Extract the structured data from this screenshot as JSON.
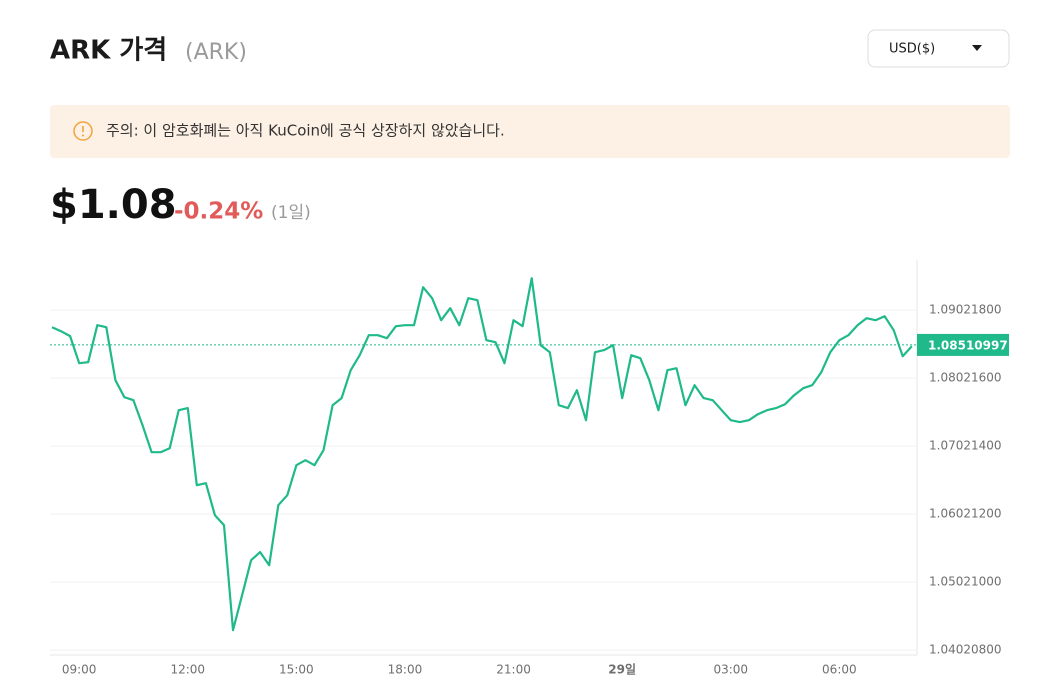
{
  "header": {
    "title": "ARK 가격",
    "symbol": "(ARK)",
    "currency_button": "USD($)"
  },
  "notice": {
    "text": "주의: 이 암호화폐는 아직 KuCoin에 공식 상장하지 않았습니다."
  },
  "price": {
    "value": "$1.08",
    "change": "-0.24%",
    "period": "(1일)"
  },
  "chart_data": {
    "type": "line",
    "categories": [
      null,
      null,
      null,
      "09:00",
      null,
      null,
      null,
      null,
      null,
      null,
      null,
      null,
      null,
      null,
      null,
      "12:00",
      null,
      null,
      null,
      null,
      null,
      null,
      null,
      null,
      null,
      null,
      null,
      "15:00",
      null,
      null,
      null,
      null,
      null,
      null,
      null,
      null,
      null,
      null,
      null,
      "18:00",
      null,
      null,
      null,
      null,
      null,
      null,
      null,
      null,
      null,
      null,
      null,
      "21:00",
      null,
      null,
      null,
      null,
      null,
      null,
      null,
      null,
      null,
      null,
      null,
      "29일",
      null,
      null,
      null,
      null,
      null,
      null,
      null,
      null,
      null,
      null,
      null,
      "03:00",
      null,
      null,
      null,
      null,
      null,
      null,
      null,
      null,
      null,
      null,
      null,
      "06:00",
      null,
      null,
      null,
      null,
      null,
      null,
      null,
      null
    ],
    "series": [
      {
        "name": "ARK",
        "color": "#1fb98a",
        "values": [
          1.08772,
          1.08713,
          1.0864,
          1.08242,
          1.08257,
          1.08801,
          1.08772,
          1.07992,
          1.07742,
          1.07698,
          1.07331,
          1.06933,
          1.06933,
          1.06992,
          1.07551,
          1.07581,
          1.06448,
          1.06477,
          1.06007,
          1.0586,
          1.04315,
          1.0483,
          1.05345,
          1.05463,
          1.05271,
          1.06154,
          1.06301,
          1.06742,
          1.06816,
          1.06742,
          1.06963,
          1.07625,
          1.07728,
          1.08139,
          1.0836,
          1.08654,
          1.08654,
          1.0861,
          1.08787,
          1.08801,
          1.08801,
          1.0936,
          1.09198,
          1.08875,
          1.09051,
          1.08801,
          1.09198,
          1.09169,
          1.08581,
          1.08551,
          1.08242,
          1.08875,
          1.08787,
          1.09493,
          1.08507,
          1.08404,
          1.07625,
          1.07581,
          1.07845,
          1.07404,
          1.08404,
          1.08434,
          1.08507,
          1.07728,
          1.0836,
          1.08316,
          1.07992,
          1.07551,
          1.08139,
          1.08169,
          1.07625,
          1.07919,
          1.07728,
          1.07698,
          1.07551,
          1.07404,
          1.07375,
          1.07404,
          1.07492,
          1.07551,
          1.07581,
          1.07639,
          1.07772,
          1.07875,
          1.07919,
          1.0811,
          1.08404,
          1.08581,
          1.08654,
          1.08801,
          1.08904,
          1.08875,
          1.08934,
          1.08728,
          1.08345,
          1.08492
        ]
      }
    ],
    "current_price": 1.08510997,
    "ylim": [
      1.0395,
      1.0976
    ],
    "yticks": [
      {
        "value": 1.090218,
        "label": "1.09021800"
      },
      {
        "value": 1.080216,
        "label": "1.08021600"
      },
      {
        "value": 1.070214,
        "label": "1.07021400"
      },
      {
        "value": 1.060212,
        "label": "1.06021200"
      },
      {
        "value": 1.05021,
        "label": "1.05021000"
      },
      {
        "value": 1.040208,
        "label": "1.04020800"
      }
    ],
    "grid": true
  }
}
